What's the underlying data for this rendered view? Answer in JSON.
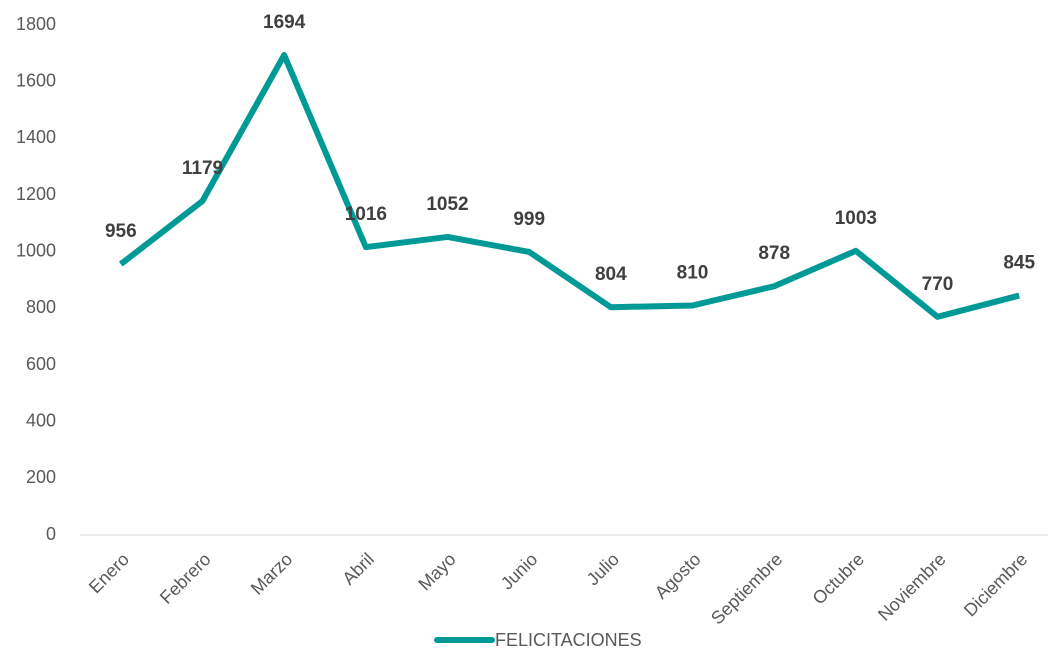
{
  "chart_data": {
    "type": "line",
    "categories": [
      "Enero",
      "Febrero",
      "Marzo",
      "Abril",
      "Mayo",
      "Junio",
      "Julio",
      "Agosto",
      "Septiembre",
      "Octubre",
      "Noviembre",
      "Diciembre"
    ],
    "series": [
      {
        "name": "FELICITACIONES",
        "color": "#009a96",
        "values": [
          956,
          1179,
          1694,
          1016,
          1052,
          999,
          804,
          810,
          878,
          1003,
          770,
          845
        ]
      }
    ],
    "ylim": [
      0,
      1800
    ],
    "yticks": [
      0,
      200,
      400,
      600,
      800,
      1000,
      1200,
      1400,
      1600,
      1800
    ],
    "grid": false,
    "legend": "bottom"
  }
}
